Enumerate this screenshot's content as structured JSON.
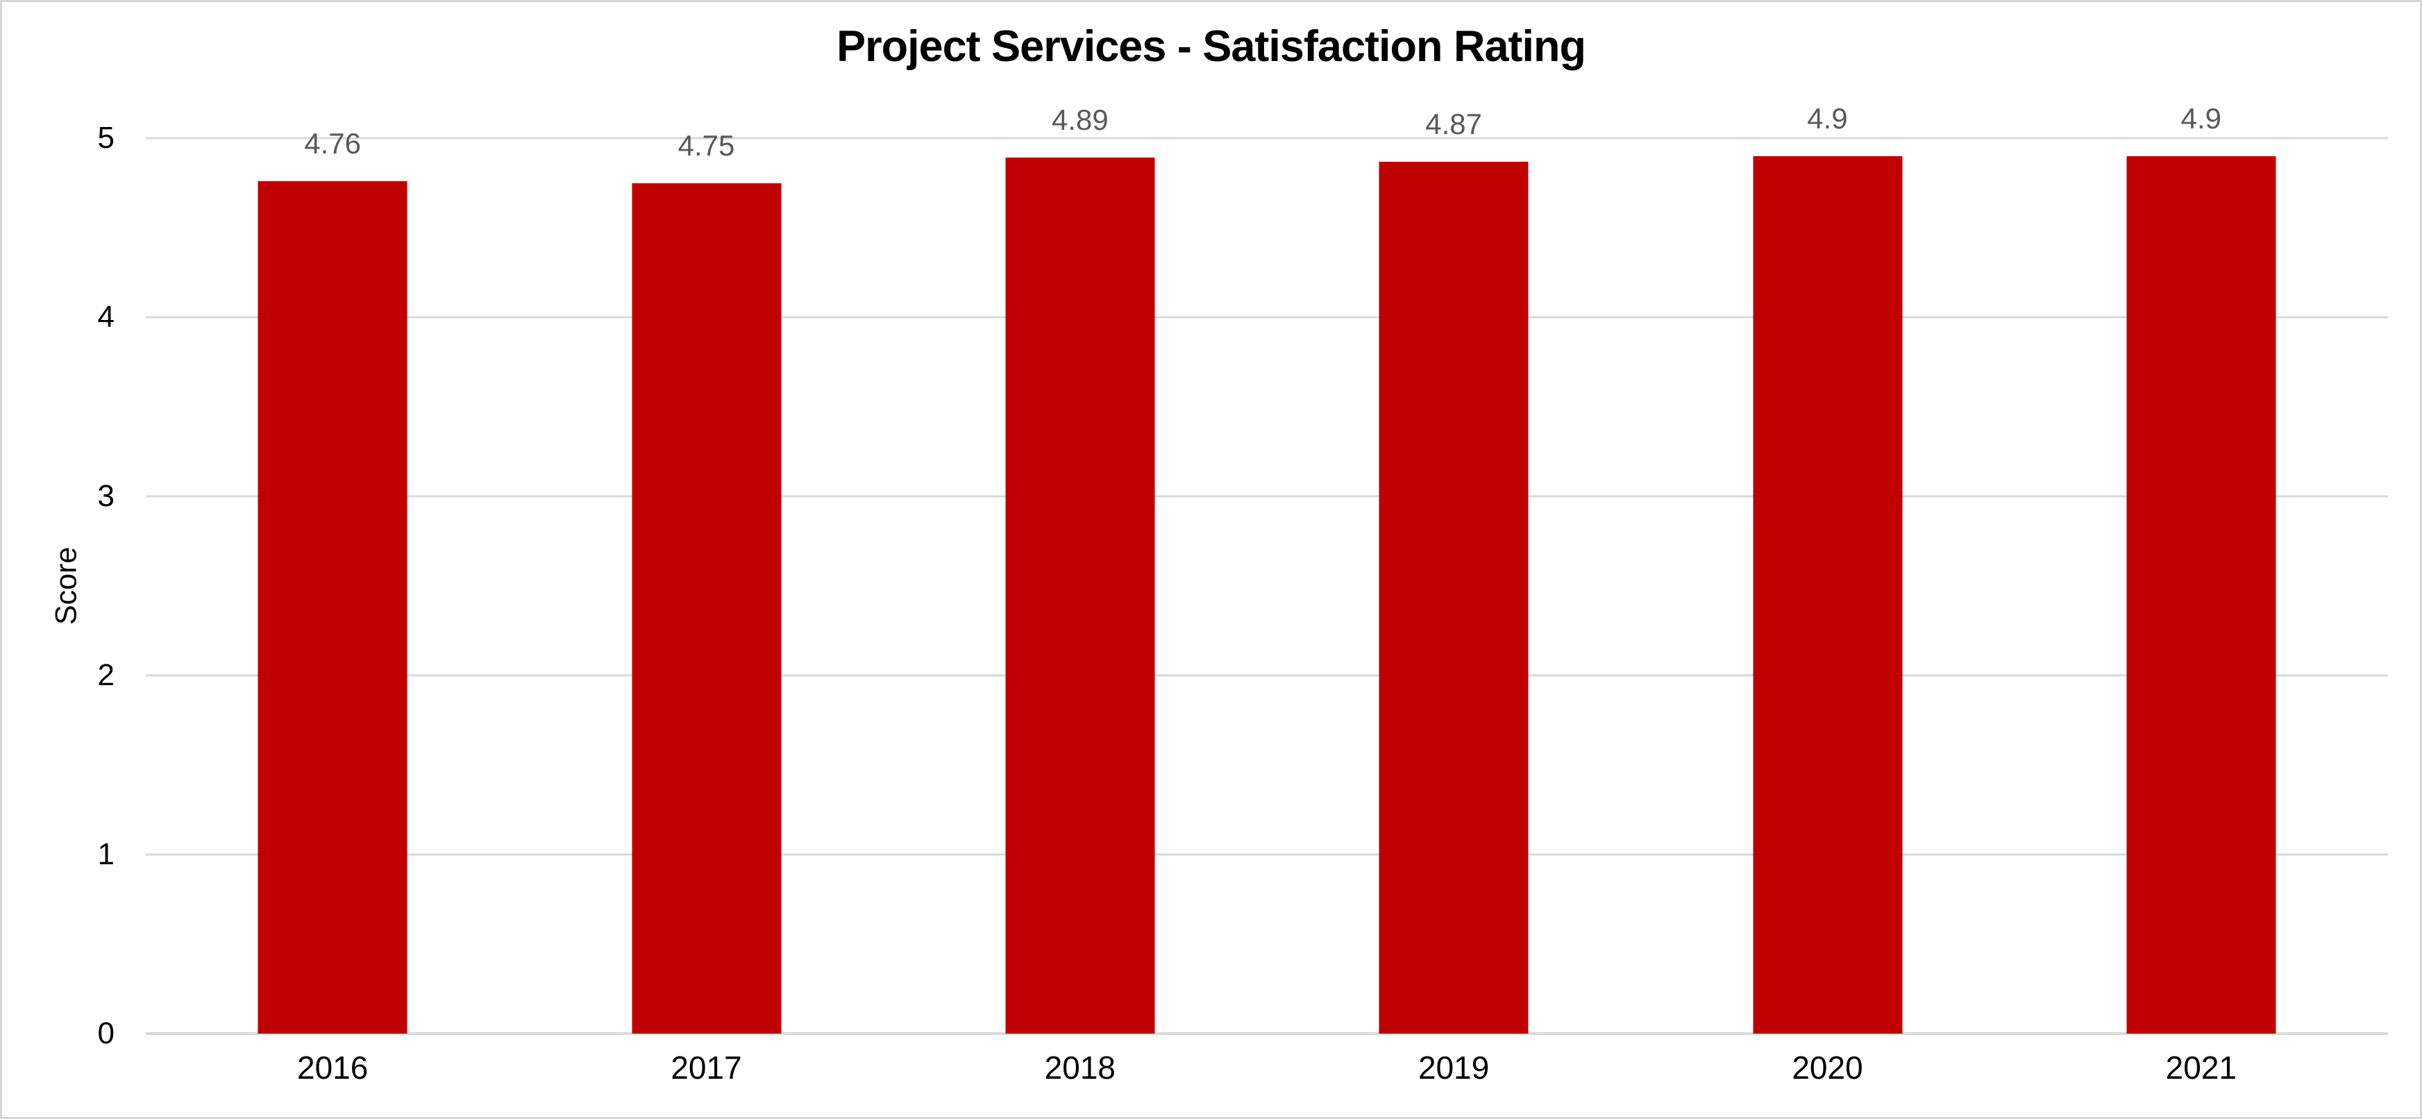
{
  "chart_data": {
    "type": "bar",
    "title": "Project Services - Satisfaction Rating",
    "categories": [
      "2016",
      "2017",
      "2018",
      "2019",
      "2020",
      "2021"
    ],
    "values": [
      4.76,
      4.75,
      4.89,
      4.87,
      4.9,
      4.9
    ],
    "value_labels": [
      "4.76",
      "4.75",
      "4.89",
      "4.87",
      "4.9",
      "4.9"
    ],
    "xlabel": "",
    "ylabel": "Score",
    "ylim": [
      0,
      5
    ],
    "yticks": [
      0,
      1,
      2,
      3,
      4,
      5
    ],
    "grid": true,
    "legend": false,
    "colors": {
      "bar": "#C00000",
      "value_label": "#595959",
      "gridline": "#D9D9D9",
      "axis_line": "#D9D9D9",
      "text": "#000000",
      "background": "#FFFFFF",
      "frame_border": "#D6D6D6"
    }
  }
}
